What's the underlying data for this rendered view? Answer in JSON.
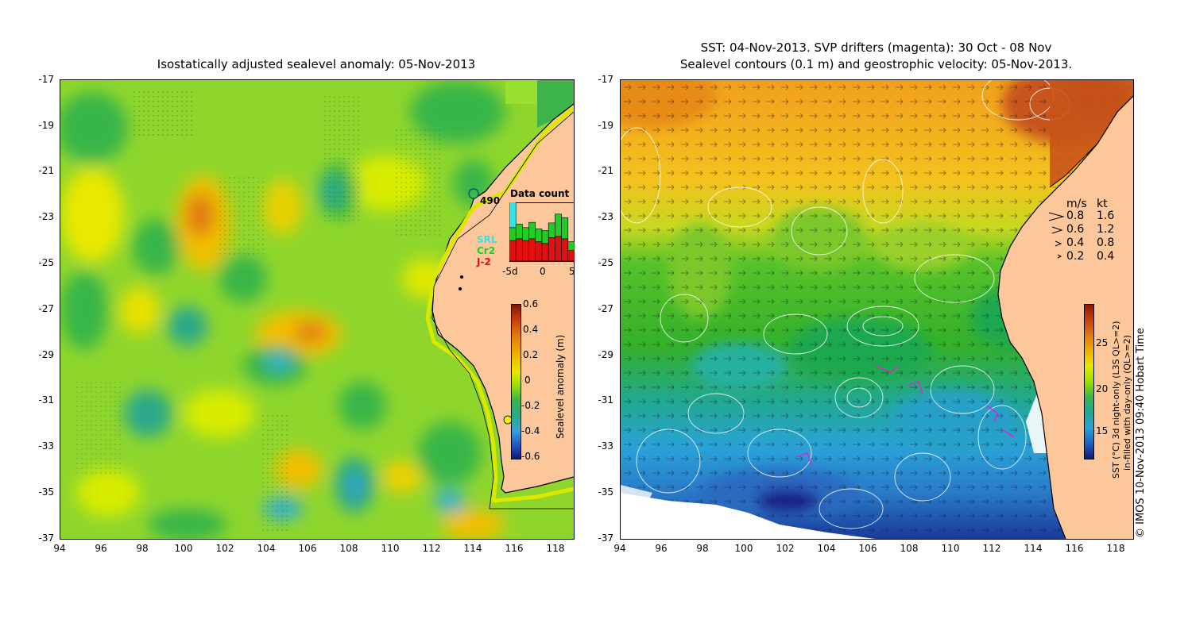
{
  "left_panel": {
    "title": "Isostatically adjusted sealevel anomaly: 05-Nov-2013",
    "y_ticks": [
      "-17",
      "-19",
      "-21",
      "-23",
      "-25",
      "-27",
      "-29",
      "-31",
      "-33",
      "-35",
      "-37"
    ],
    "x_ticks": [
      "94",
      "96",
      "98",
      "100",
      "102",
      "104",
      "106",
      "108",
      "110",
      "112",
      "114",
      "116",
      "118"
    ],
    "station_label": "490",
    "data_count": {
      "title": "Data count",
      "axis_labels": [
        "-5d",
        "0",
        "5"
      ],
      "sources": [
        {
          "name": "SRL",
          "color": "#33e5e5"
        },
        {
          "name": "Cr2",
          "color": "#22cc22"
        },
        {
          "name": "J-2",
          "color": "#e01010"
        }
      ],
      "bars_srl": [
        1,
        0,
        0,
        0,
        0,
        0,
        0,
        0,
        0,
        0
      ],
      "bars_cr2": [
        0.22,
        0.25,
        0.22,
        0.28,
        0.22,
        0.22,
        0.25,
        0.38,
        0.36,
        0.15
      ],
      "bars_j2": [
        0.35,
        0.38,
        0.35,
        0.38,
        0.33,
        0.3,
        0.4,
        0.42,
        0.38,
        0.18
      ]
    },
    "colorbar": {
      "label": "Sealevel anomaly (m)",
      "ticks": [
        "0.6",
        "0.4",
        "0.2",
        "0",
        "-0.2",
        "-0.4",
        "-0.6"
      ]
    }
  },
  "right_panel": {
    "title_line1": "SST: 04-Nov-2013. SVP drifters (magenta): 30 Oct - 08 Nov",
    "title_line2": "Sealevel contours (0.1 m) and geostrophic velocity: 05-Nov-2013.",
    "y_ticks": [
      "-17",
      "-19",
      "-21",
      "-23",
      "-25",
      "-27",
      "-29",
      "-31",
      "-33",
      "-35",
      "-37"
    ],
    "x_ticks": [
      "94",
      "96",
      "98",
      "100",
      "102",
      "104",
      "106",
      "108",
      "110",
      "112",
      "114",
      "116",
      "118"
    ],
    "velocity_legend": {
      "header_ms": "m/s",
      "header_kt": "kt",
      "rows": [
        {
          "ms": "0.8",
          "kt": "1.6"
        },
        {
          "ms": "0.6",
          "kt": "1.2"
        },
        {
          "ms": "0.4",
          "kt": "0.8"
        },
        {
          "ms": "0.2",
          "kt": "0.4"
        }
      ]
    },
    "colorbar": {
      "ticks": [
        "25",
        "20",
        "15"
      ],
      "label_line1": "SST (°C) 3d night-only (L3S QL>=2)",
      "label_line2": "in-filled with day-only (QL>=2)"
    },
    "credit": "© IMOS 10-Nov-2013 09:40 Hobart Time"
  },
  "colors": {
    "land": "#fbc79b",
    "sla_mid": "#9be000",
    "sst_warm": "#f2a21c",
    "sst_mid": "#3fc12a",
    "sst_cool": "#2aa2d8",
    "sst_cold": "#1a2a9a"
  }
}
